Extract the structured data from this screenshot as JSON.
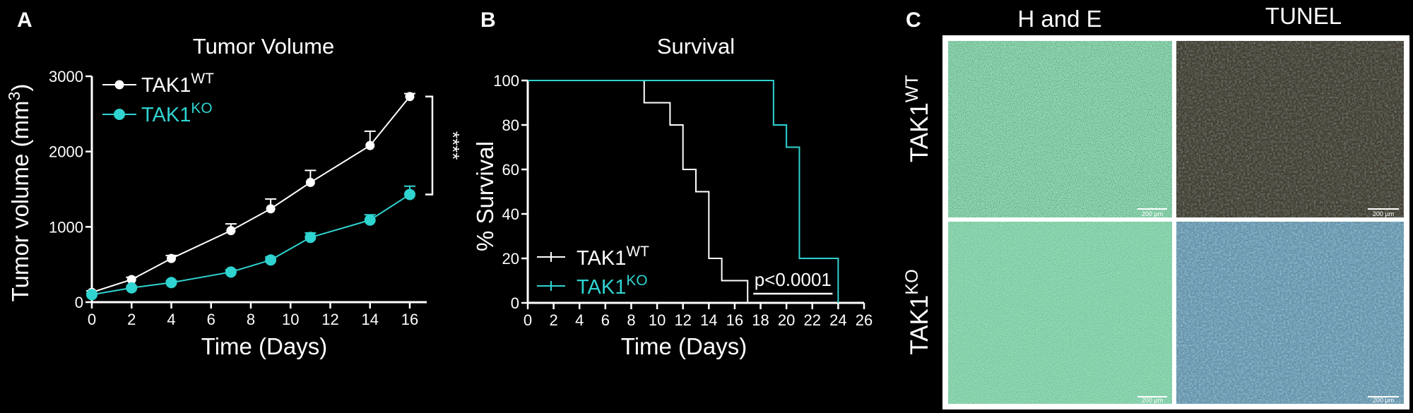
{
  "panels": {
    "a": {
      "letter": "A"
    },
    "b": {
      "letter": "B"
    },
    "c": {
      "letter": "C"
    }
  },
  "chart_data": [
    {
      "type": "line",
      "title": "Tumor Volume",
      "xlabel": "Time (Days)",
      "ylabel": "Tumor volume (mm3)",
      "xlim": [
        0,
        16
      ],
      "ylim": [
        0,
        3000
      ],
      "xticks": [
        0,
        2,
        4,
        6,
        8,
        10,
        12,
        14,
        16
      ],
      "yticks": [
        0,
        1000,
        2000,
        3000
      ],
      "x": [
        0,
        2,
        4,
        7,
        9,
        11,
        14,
        16
      ],
      "series": [
        {
          "name": "TAK1WT",
          "label_base": "TAK1",
          "label_sup": "WT",
          "color": "#ffffff",
          "values": [
            130,
            300,
            580,
            950,
            1240,
            1590,
            2080,
            2730
          ],
          "errors": [
            20,
            30,
            40,
            90,
            130,
            160,
            190,
            40
          ]
        },
        {
          "name": "TAK1KO",
          "label_base": "TAK1",
          "label_sup": "KO",
          "color": "#2fd3d0",
          "values": [
            100,
            190,
            260,
            400,
            560,
            860,
            1090,
            1430
          ],
          "errors": [
            15,
            20,
            25,
            30,
            40,
            60,
            70,
            110
          ]
        }
      ],
      "significance": "****",
      "legend_position": "top-left",
      "grid": false
    },
    {
      "type": "line",
      "subtype": "kaplan-meier",
      "title": "Survival",
      "xlabel": "Time (Days)",
      "ylabel": "% Survival",
      "xlim": [
        0,
        26
      ],
      "ylim": [
        0,
        100
      ],
      "xticks": [
        0,
        2,
        4,
        6,
        8,
        10,
        12,
        14,
        16,
        18,
        20,
        22,
        24,
        26
      ],
      "yticks": [
        0,
        20,
        40,
        60,
        80,
        100
      ],
      "series": [
        {
          "name": "TAK1WT",
          "label_base": "TAK1",
          "label_sup": "WT",
          "color": "#ffffff",
          "times": [
            0,
            9,
            11,
            12,
            13,
            14,
            15,
            17
          ],
          "survival": [
            100,
            90,
            80,
            60,
            50,
            20,
            10,
            0
          ]
        },
        {
          "name": "TAK1KO",
          "label_base": "TAK1",
          "label_sup": "KO",
          "color": "#2fd3d0",
          "times": [
            0,
            19,
            20,
            21,
            24
          ],
          "survival": [
            100,
            80,
            70,
            20,
            0
          ]
        }
      ],
      "p_value": "p<0.0001",
      "p_bar": [
        17,
        24
      ],
      "legend_position": "bottom-left",
      "grid": false
    }
  ],
  "micrographs": {
    "columns": [
      "H and E",
      "TUNEL"
    ],
    "rows": [
      {
        "label_base": "TAK1",
        "label_sup": "WT"
      },
      {
        "label_base": "TAK1",
        "label_sup": "KO"
      }
    ],
    "scale_bar_label": "200 µm",
    "colors": {
      "he": "#8fdcb4",
      "tunel_wt": "#4a4536",
      "tunel_ko": "#6e9db4",
      "frame": "#ffffff"
    }
  }
}
